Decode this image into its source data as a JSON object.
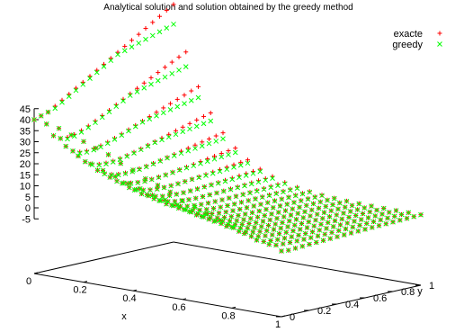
{
  "chart_data": {
    "type": "scatter",
    "title": "Analytical solution and solution obtained by the greedy method",
    "xlabel": "x",
    "ylabel": "y",
    "xlim": [
      0,
      1
    ],
    "ylim": [
      0,
      1
    ],
    "zlim": [
      -5,
      45
    ],
    "x_ticks": [
      "0",
      "0.2",
      "0.4",
      "0.6",
      "0.8",
      "1"
    ],
    "y_ticks": [
      "0",
      "0.2",
      "0.4",
      "0.6",
      "0.8",
      "1"
    ],
    "z_ticks": [
      "-5",
      "0",
      "5",
      "10",
      "15",
      "20",
      "25",
      "30",
      "35",
      "40",
      "45"
    ],
    "legend_position": "top-right",
    "grid": false,
    "series": [
      {
        "name": "exacte",
        "marker": "+",
        "color": "#ff0000",
        "grid_points": 21,
        "boundary_x0": [
          40,
          41,
          42,
          44,
          46,
          48,
          50,
          52,
          54,
          56,
          58,
          60,
          62,
          64,
          66,
          68,
          70,
          72,
          74,
          76,
          78
        ],
        "boundary_y0": [
          40,
          39,
          38,
          36,
          34,
          32,
          30,
          27,
          25,
          22,
          20,
          18,
          15,
          13,
          11,
          9,
          7,
          5,
          3,
          2,
          0
        ]
      },
      {
        "name": "greedy",
        "marker": "x",
        "color": "#00ff00",
        "grid_points": 21,
        "boundary_x0": [
          40,
          41,
          42,
          43,
          45,
          47,
          49,
          51,
          53,
          55,
          57,
          59,
          61,
          62,
          63,
          64,
          65,
          66,
          67,
          68,
          69
        ],
        "boundary_y0": [
          40,
          39,
          38,
          36,
          34,
          32,
          30,
          27,
          25,
          22,
          20,
          18,
          15,
          13,
          11,
          9,
          7,
          5,
          3,
          2,
          0
        ]
      }
    ]
  }
}
